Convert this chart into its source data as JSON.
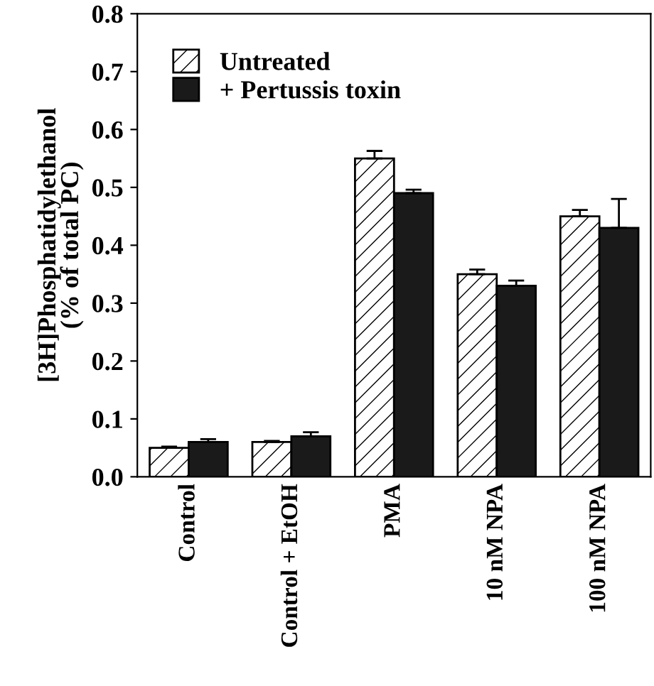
{
  "chart_data": {
    "type": "bar",
    "ylabel": "[3H]Phosphatidylethanol\n(% of total PC)",
    "categories": [
      "Control",
      "Control + EtOH",
      "PMA",
      "10 nM NPA",
      "100 nM NPA"
    ],
    "series": [
      {
        "name": "Untreated",
        "color": "#ffffff",
        "values": [
          0.05,
          0.06,
          0.55,
          0.35,
          0.45
        ],
        "errors": [
          0.002,
          0.002,
          0.013,
          0.008,
          0.011
        ]
      },
      {
        "name": "+ Pertussis toxin",
        "color": "#1a1a1a",
        "values": [
          0.06,
          0.07,
          0.49,
          0.33,
          0.43
        ],
        "errors": [
          0.005,
          0.007,
          0.006,
          0.009,
          0.05
        ]
      }
    ],
    "ylim": [
      0,
      0.8
    ],
    "yticks": [
      "0.0",
      0.1,
      0.2,
      0.3,
      0.4,
      0.5,
      0.6,
      0.7,
      0.8
    ],
    "grid": false,
    "legend": "top left"
  }
}
